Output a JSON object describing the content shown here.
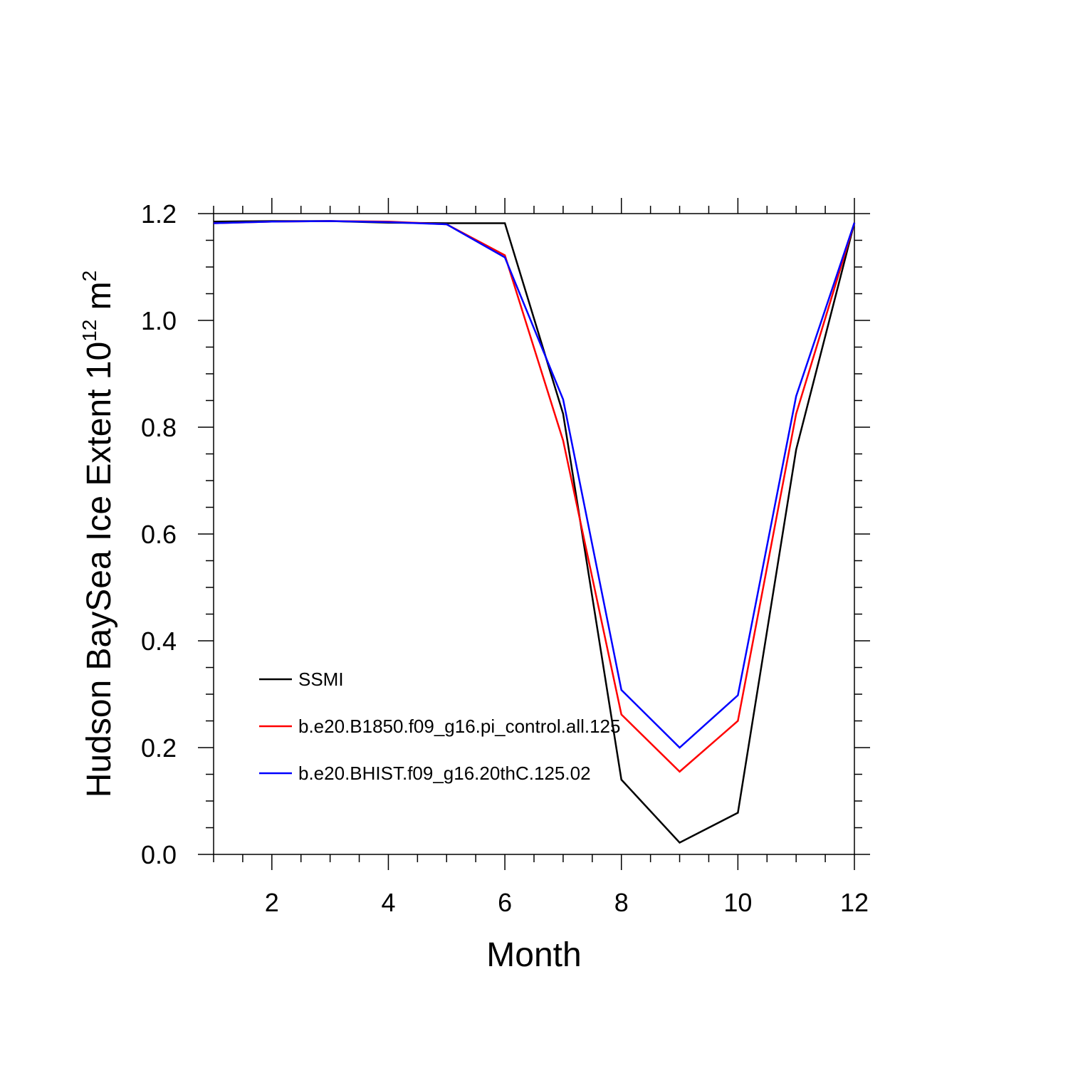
{
  "chart_data": {
    "type": "line",
    "xlabel": "Month",
    "ylabel": {
      "prefix": "Hudson BaySea Ice Extent 10",
      "exponent": "12",
      "unit": " m",
      "unit_exponent": "2"
    },
    "xlim": [
      1,
      12
    ],
    "ylim": [
      0,
      1.2
    ],
    "xticks": [
      2,
      4,
      6,
      8,
      10,
      12
    ],
    "xtick_labels": [
      "2",
      "4",
      "6",
      "8",
      "10",
      "12"
    ],
    "yticks": [
      0,
      0.2,
      0.4,
      0.6,
      0.8,
      1.0,
      1.2
    ],
    "ytick_labels": [
      "0.0",
      "0.2",
      "0.4",
      "0.6",
      "0.8",
      "1.0",
      "1.2"
    ],
    "grid": false,
    "legend_position": "lower-left",
    "x": [
      1,
      2,
      3,
      4,
      5,
      6,
      7,
      8,
      9,
      10,
      11,
      12
    ],
    "series": [
      {
        "name": "SSMI",
        "color": "#000000",
        "values": [
          1.185,
          1.186,
          1.186,
          1.183,
          1.182,
          1.182,
          0.825,
          0.14,
          0.022,
          0.078,
          0.758,
          1.183
        ]
      },
      {
        "name": "b.e20.B1850.f09_g16.pi_control.all.125",
        "color": "#ff0000",
        "values": [
          1.182,
          1.185,
          1.186,
          1.185,
          1.18,
          1.122,
          0.775,
          0.262,
          0.155,
          0.25,
          0.825,
          1.183
        ]
      },
      {
        "name": "b.e20.BHIST.f09_g16.20thC.125.02",
        "color": "#0000ff",
        "values": [
          1.182,
          1.185,
          1.186,
          1.184,
          1.18,
          1.118,
          0.852,
          0.308,
          0.2,
          0.298,
          0.858,
          1.183
        ]
      }
    ]
  }
}
